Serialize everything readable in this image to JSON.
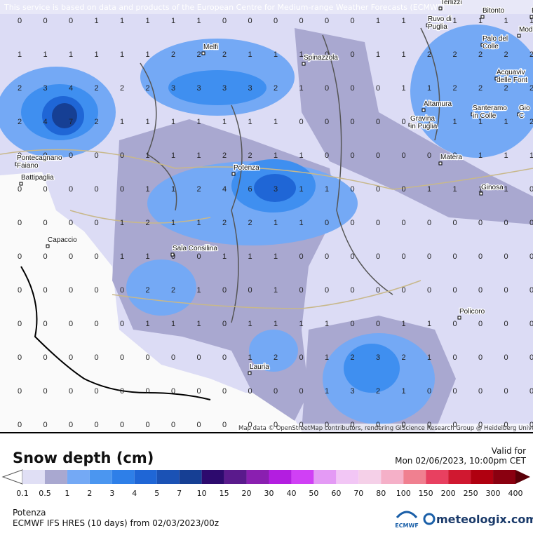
{
  "banner": "This service is based on data and products of the European Centre for Medium-range Weather Forecasts (ECMWF)",
  "attribution": "Map data © OpenStreetMap contributors, rendering GIScience Research Group @ Heidelberg University",
  "cities": [
    {
      "lines": [
        "Terlizzi"
      ]
    },
    {
      "lines": [
        "Bitonto"
      ]
    },
    {
      "lines": [
        "Bari"
      ]
    },
    {
      "lines": [
        "Ruvo di",
        "Puglia"
      ]
    },
    {
      "lines": [
        "Modugn"
      ]
    },
    {
      "lines": [
        "Palo del",
        "Colle"
      ]
    },
    {
      "lines": [
        "Melfi"
      ]
    },
    {
      "lines": [
        "Spinazzola"
      ]
    },
    {
      "lines": [
        "Acquaviv",
        "delle Font"
      ]
    },
    {
      "lines": [
        "Altamura"
      ]
    },
    {
      "lines": [
        "Gravina",
        "in Puglia"
      ]
    },
    {
      "lines": [
        "Santeramo",
        "in Colle"
      ]
    },
    {
      "lines": [
        "Gio",
        "C"
      ]
    },
    {
      "lines": [
        "Pontecagnano",
        "Faiano"
      ]
    },
    {
      "lines": [
        "Potenza"
      ]
    },
    {
      "lines": [
        "Matera"
      ]
    },
    {
      "lines": [
        "Battipaglia"
      ]
    },
    {
      "lines": [
        "Ginosa"
      ]
    },
    {
      "lines": [
        "Capaccio"
      ]
    },
    {
      "lines": [
        "Sala Consilina"
      ]
    },
    {
      "lines": [
        "Policoro"
      ]
    },
    {
      "lines": [
        "Lauria"
      ]
    }
  ],
  "grid": {
    "rows": [
      [
        0,
        0,
        0,
        1,
        1,
        1,
        1,
        1,
        0,
        0,
        0,
        0,
        0,
        0,
        1,
        1,
        1,
        1,
        1,
        1,
        1
      ],
      [
        1,
        1,
        1,
        1,
        1,
        1,
        2,
        2,
        2,
        1,
        1,
        1,
        0,
        0,
        1,
        1,
        2,
        2,
        2,
        2,
        2
      ],
      [
        2,
        3,
        4,
        2,
        2,
        2,
        3,
        3,
        3,
        3,
        2,
        1,
        0,
        0,
        0,
        1,
        1,
        2,
        2,
        2,
        2
      ],
      [
        2,
        4,
        7,
        2,
        1,
        1,
        1,
        1,
        1,
        1,
        1,
        0,
        0,
        0,
        0,
        0,
        1,
        1,
        1,
        1,
        2
      ],
      [
        0,
        0,
        0,
        0,
        0,
        1,
        1,
        1,
        2,
        2,
        1,
        1,
        0,
        0,
        0,
        0,
        0,
        0,
        1,
        1,
        1
      ],
      [
        0,
        0,
        0,
        0,
        0,
        1,
        1,
        2,
        4,
        6,
        3,
        1,
        1,
        0,
        0,
        0,
        1,
        1,
        1,
        1,
        0
      ],
      [
        0,
        0,
        0,
        0,
        1,
        2,
        1,
        1,
        2,
        2,
        1,
        1,
        0,
        0,
        0,
        0,
        0,
        0,
        0,
        0,
        0
      ],
      [
        0,
        0,
        0,
        0,
        1,
        1,
        0,
        0,
        1,
        1,
        1,
        0,
        0,
        0,
        0,
        0,
        0,
        0,
        0,
        0,
        0
      ],
      [
        0,
        0,
        0,
        0,
        0,
        2,
        2,
        1,
        0,
        0,
        1,
        0,
        0,
        0,
        0,
        0,
        0,
        0,
        0,
        0,
        0
      ],
      [
        0,
        0,
        0,
        0,
        0,
        1,
        1,
        1,
        0,
        1,
        1,
        1,
        1,
        0,
        0,
        1,
        1,
        0,
        0,
        0,
        0
      ],
      [
        0,
        0,
        0,
        0,
        0,
        0,
        0,
        0,
        0,
        1,
        2,
        0,
        1,
        2,
        3,
        2,
        1,
        0,
        0,
        0,
        0
      ],
      [
        0,
        0,
        0,
        0,
        0,
        0,
        0,
        0,
        0,
        0,
        0,
        0,
        1,
        3,
        2,
        1,
        0,
        0,
        0,
        0,
        0
      ],
      [
        0,
        0,
        0,
        0,
        0,
        0,
        0,
        0,
        0,
        0,
        0,
        0,
        0,
        0,
        0,
        0,
        0,
        0,
        0,
        0,
        0
      ]
    ]
  },
  "legend": {
    "title": "Snow depth (cm)",
    "ticks": [
      0.1,
      0.5,
      1,
      2,
      3,
      4,
      5,
      7,
      10,
      15,
      20,
      30,
      40,
      50,
      60,
      70,
      80,
      100,
      150,
      200,
      250,
      300,
      400
    ],
    "colors": [
      "#e0dff5",
      "#a9a8d0",
      "#74a9f5",
      "#4b96f0",
      "#2e7fe8",
      "#1f66d6",
      "#1b52b5",
      "#163f94",
      "#2d0a6e",
      "#5a1a8c",
      "#8a1fb0",
      "#b31ee0",
      "#d040f5",
      "#e49af5",
      "#f2c6f5",
      "#f5d0e8",
      "#f5b0c8",
      "#f08090",
      "#e84060",
      "#d01830",
      "#b00010",
      "#8a0010"
    ]
  },
  "valid_label": "Valid for",
  "valid_time": "Mon 02/06/2023, 10:00pm CET",
  "location": "Potenza",
  "model": "ECMWF IFS HRES (10 days) from 02/03/2023/00z",
  "ecmwf_logo": "ECMWF",
  "brand": "meteologix.com"
}
